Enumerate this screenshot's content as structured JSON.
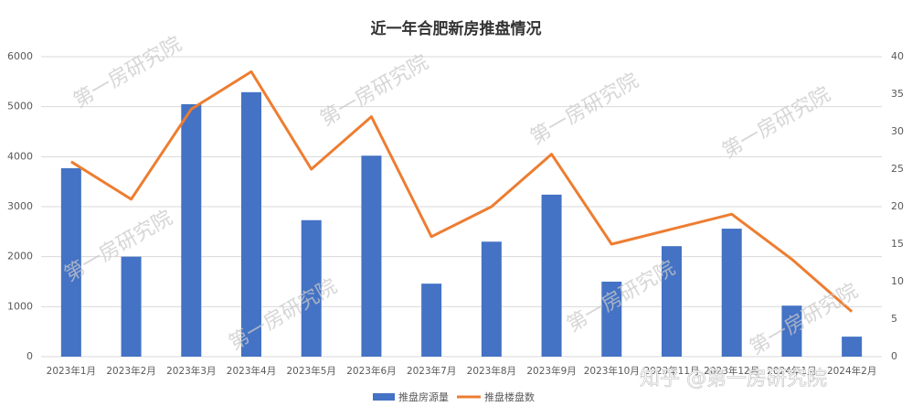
{
  "chart_data": {
    "type": "bar-line",
    "title": "近一年合肥新房推盘情况",
    "categories": [
      "2023年1月",
      "2023年2月",
      "2023年3月",
      "2023年4月",
      "2023年5月",
      "2023年6月",
      "2023年7月",
      "2023年8月",
      "2023年9月",
      "2023年10月",
      "2023年11月",
      "2023年12月",
      "2024年1月",
      "2024年2月"
    ],
    "series": [
      {
        "name": "推盘房源量",
        "type": "bar",
        "color": "#4472c4",
        "values": [
          3770,
          2000,
          5050,
          5290,
          2730,
          4020,
          1460,
          2300,
          3240,
          1500,
          2210,
          2560,
          1020,
          400
        ]
      },
      {
        "name": "推盘楼盘数",
        "type": "line",
        "axis": "y2",
        "color": "#ed7d31",
        "values": [
          26,
          21,
          33,
          38,
          25,
          32,
          16,
          20,
          27,
          15,
          17,
          19,
          13,
          6
        ]
      }
    ],
    "ylim": [
      0,
      6000
    ],
    "yticks": [
      0,
      1000,
      2000,
      3000,
      4000,
      5000,
      6000
    ],
    "y2lim": [
      0,
      40
    ],
    "y2ticks": [
      0,
      5,
      10,
      15,
      20,
      25,
      30,
      35,
      40
    ],
    "grid": true,
    "legend": "bottom",
    "watermark": "第一房研究院",
    "credit": "知乎 @第一房研究院"
  }
}
